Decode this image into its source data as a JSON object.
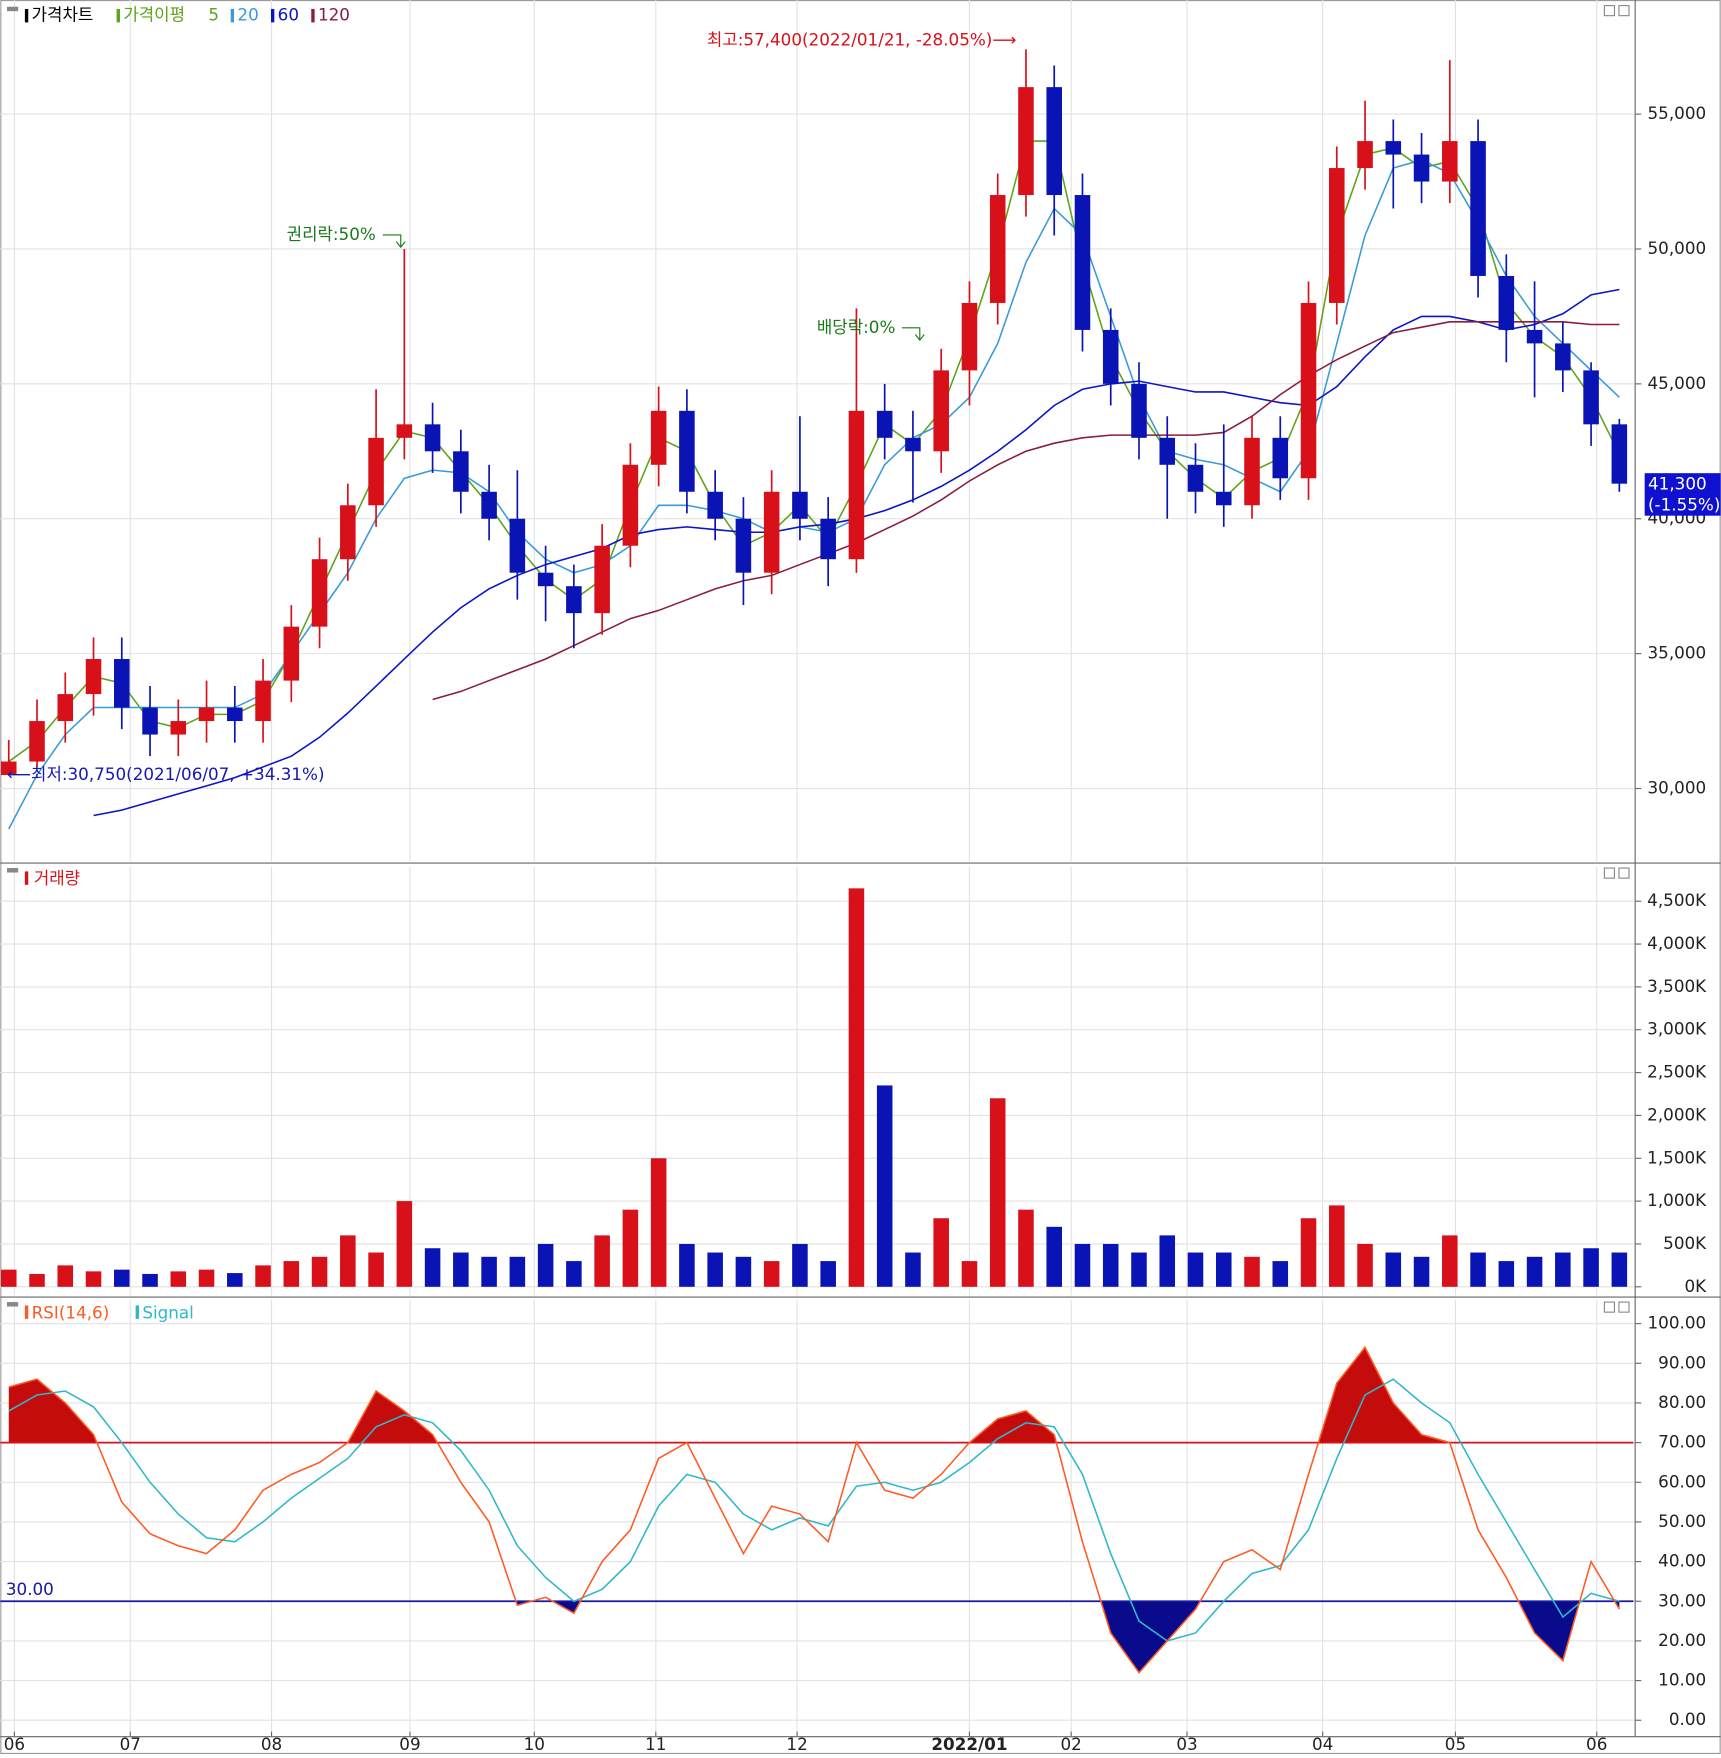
{
  "chart_data": [
    {
      "type": "candlestick",
      "title": "가격차트",
      "legend_title": "가격이평",
      "xlim": [
        -0.3,
        57.5
      ],
      "ylim": [
        27300,
        59230
      ],
      "yticks": [
        {
          "value": 30000,
          "label": "30,000"
        },
        {
          "value": 35000,
          "label": "35,000"
        },
        {
          "value": 40000,
          "label": "40,000"
        },
        {
          "value": 45000,
          "label": "45,000"
        },
        {
          "value": 50000,
          "label": "50,000"
        },
        {
          "value": 55000,
          "label": "55,000"
        }
      ],
      "grid": true,
      "up_color": "#d7101a",
      "down_color": "#0a14b4",
      "open": [
        30500,
        31000,
        32500,
        33500,
        34800,
        33000,
        32000,
        32500,
        33000,
        32500,
        34000,
        36000,
        38500,
        40500,
        43000,
        43500,
        42500,
        41000,
        40000,
        38000,
        37500,
        36500,
        39000,
        42000,
        44000,
        41000,
        40000,
        38000,
        41000,
        40000,
        38500,
        44000,
        43000,
        42500,
        45500,
        48000,
        52000,
        56000,
        52000,
        47000,
        45000,
        43000,
        42000,
        41000,
        40500,
        43000,
        41500,
        48000,
        53000,
        54000,
        53500,
        52500,
        54000,
        49000,
        47000,
        46500,
        45500,
        43500
      ],
      "high": [
        31800,
        33300,
        34300,
        35600,
        35600,
        33800,
        33300,
        34000,
        33800,
        34800,
        36800,
        39300,
        41300,
        44800,
        50000,
        44300,
        43300,
        42000,
        41800,
        39000,
        38300,
        39800,
        42800,
        44900,
        44800,
        41800,
        40800,
        41800,
        43800,
        40800,
        47800,
        45000,
        44000,
        46300,
        48800,
        52800,
        57400,
        56800,
        52800,
        47800,
        45800,
        43800,
        42800,
        43500,
        43800,
        43800,
        48800,
        53800,
        55500,
        54800,
        54300,
        57000,
        54800,
        49800,
        48800,
        47300,
        45800,
        43700
      ],
      "low": [
        30750,
        30800,
        31700,
        32700,
        32200,
        31200,
        31200,
        31700,
        31700,
        31700,
        33200,
        35200,
        37700,
        39700,
        42200,
        41700,
        40200,
        39200,
        37000,
        36200,
        35200,
        35700,
        38200,
        41200,
        40200,
        39200,
        36800,
        37200,
        39200,
        37500,
        38000,
        42200,
        40600,
        41700,
        44200,
        47200,
        51200,
        50500,
        46200,
        44200,
        42200,
        40000,
        40200,
        39700,
        40000,
        40700,
        40700,
        47200,
        52200,
        51500,
        51700,
        51700,
        48200,
        45800,
        44500,
        44700,
        42700,
        41000
      ],
      "close": [
        31000,
        32500,
        33500,
        34800,
        33000,
        32000,
        32500,
        33000,
        32500,
        34000,
        36000,
        38500,
        40500,
        43000,
        43500,
        42500,
        41000,
        40000,
        38000,
        37500,
        36500,
        39000,
        42000,
        44000,
        41000,
        40000,
        38000,
        41000,
        40000,
        38500,
        44000,
        43000,
        42500,
        45500,
        48000,
        52000,
        56000,
        52000,
        47000,
        45000,
        43000,
        42000,
        41000,
        40500,
        43000,
        41500,
        48000,
        53000,
        54000,
        53500,
        52500,
        54000,
        49000,
        47000,
        46500,
        45500,
        43500,
        41300
      ],
      "series": [
        {
          "name": "5",
          "color": "#5ea31a",
          "values": [
            31000,
            31750,
            33000,
            34150,
            33900,
            32500,
            32250,
            32750,
            32750,
            33250,
            35000,
            37250,
            39500,
            41750,
            43250,
            43000,
            41750,
            40500,
            39000,
            37750,
            37000,
            37750,
            40500,
            43000,
            42500,
            40500,
            39000,
            39500,
            40500,
            39250,
            41250,
            43500,
            42750,
            44000,
            46750,
            50000,
            54000,
            54000,
            49500,
            46000,
            44000,
            42500,
            41500,
            40750,
            41750,
            42250,
            44750,
            50500,
            53500,
            53750,
            53000,
            53250,
            51500,
            48000,
            46750,
            46000,
            44500,
            42400
          ]
        },
        {
          "name": "20",
          "color": "#3a9ad9",
          "values": [
            28500,
            30500,
            32000,
            33000,
            33000,
            33000,
            33000,
            33000,
            33000,
            33500,
            35000,
            36500,
            38000,
            40000,
            41500,
            41800,
            41700,
            41000,
            39500,
            38500,
            38000,
            38300,
            39000,
            40500,
            40500,
            40300,
            40000,
            39500,
            39700,
            39500,
            40000,
            42000,
            43000,
            43500,
            44500,
            46500,
            49500,
            51500,
            50500,
            47500,
            44500,
            42500,
            42200,
            42000,
            41500,
            41000,
            42500,
            46500,
            50500,
            53000,
            53300,
            52800,
            51000,
            49000,
            47500,
            46500,
            45500,
            44500
          ]
        },
        {
          "name": "60",
          "color": "#0a14c8",
          "values": [
            null,
            null,
            null,
            29000,
            29200,
            29500,
            29800,
            30100,
            30400,
            30800,
            31200,
            31900,
            32800,
            33800,
            34800,
            35800,
            36700,
            37400,
            37900,
            38300,
            38600,
            38900,
            39400,
            39600,
            39700,
            39600,
            39500,
            39500,
            39700,
            39800,
            40000,
            40300,
            40700,
            41200,
            41800,
            42500,
            43300,
            44200,
            44800,
            45000,
            45100,
            44900,
            44700,
            44700,
            44500,
            44300,
            44200,
            44900,
            46000,
            47000,
            47500,
            47500,
            47300,
            47000,
            47200,
            47600,
            48300,
            48500
          ]
        },
        {
          "name": "120",
          "color": "#8a1c3c",
          "values": [
            null,
            null,
            null,
            null,
            null,
            null,
            null,
            null,
            null,
            null,
            null,
            null,
            null,
            null,
            null,
            33300,
            33600,
            34000,
            34400,
            34800,
            35300,
            35800,
            36300,
            36600,
            37000,
            37400,
            37700,
            37900,
            38300,
            38700,
            39100,
            39600,
            40100,
            40700,
            41400,
            42000,
            42500,
            42800,
            43000,
            43100,
            43100,
            43100,
            43100,
            43200,
            43800,
            44600,
            45300,
            45900,
            46400,
            46900,
            47100,
            47300,
            47300,
            47300,
            47300,
            47300,
            47200,
            47200
          ]
        }
      ],
      "annotations": [
        "최고:57,400(2022/01/21, -28.05%)⟶",
        "권리락:50%",
        "배당락:0%",
        "⟵최저:30,750(2021/06/07, +34.31%)"
      ],
      "last_price_label": "41,300",
      "last_change_label": "(-1.55%)"
    },
    {
      "type": "bar",
      "title": "거래량",
      "xlim": [
        -0.3,
        57.5
      ],
      "ylim": [
        -100,
        4900
      ],
      "yticks": [
        {
          "value": 0,
          "label": "0K"
        },
        {
          "value": 500,
          "label": "500K"
        },
        {
          "value": 1000,
          "label": "1,000K"
        },
        {
          "value": 1500,
          "label": "1,500K"
        },
        {
          "value": 2000,
          "label": "2,000K"
        },
        {
          "value": 2500,
          "label": "2,500K"
        },
        {
          "value": 3000,
          "label": "3,000K"
        },
        {
          "value": 3500,
          "label": "3,500K"
        },
        {
          "value": 4000,
          "label": "4,000K"
        },
        {
          "value": 4500,
          "label": "4,500K"
        }
      ],
      "grid": true,
      "up_color": "#d7101a",
      "down_color": "#0a14b4",
      "values": [
        200,
        150,
        250,
        180,
        200,
        150,
        180,
        200,
        160,
        250,
        300,
        350,
        600,
        400,
        1000,
        450,
        400,
        350,
        350,
        500,
        300,
        600,
        900,
        1500,
        500,
        400,
        350,
        300,
        500,
        300,
        4650,
        2350,
        400,
        800,
        300,
        2200,
        900,
        700,
        500,
        500,
        400,
        600,
        400,
        400,
        350,
        300,
        800,
        950,
        500,
        400,
        350,
        600,
        400,
        300,
        350,
        400,
        450,
        400
      ]
    },
    {
      "type": "line",
      "xlim": [
        -0.3,
        57.5
      ],
      "ylim": [
        -4,
        106
      ],
      "yticks": [
        {
          "value": 0,
          "label": "0.00"
        },
        {
          "value": 10,
          "label": "10.00"
        },
        {
          "value": 20,
          "label": "20.00"
        },
        {
          "value": 30,
          "label": "30.00"
        },
        {
          "value": 40,
          "label": "40.00"
        },
        {
          "value": 50,
          "label": "50.00"
        },
        {
          "value": 60,
          "label": "60.00"
        },
        {
          "value": 70,
          "label": "70.00"
        },
        {
          "value": 80,
          "label": "80.00"
        },
        {
          "value": 90,
          "label": "90.00"
        },
        {
          "value": 100,
          "label": "100.00"
        }
      ],
      "xticks": [
        {
          "value": 0.2,
          "label": "06"
        },
        {
          "value": 4.3,
          "label": "07"
        },
        {
          "value": 9.3,
          "label": "08"
        },
        {
          "value": 14.2,
          "label": "09"
        },
        {
          "value": 18.6,
          "label": "10"
        },
        {
          "value": 22.9,
          "label": "11"
        },
        {
          "value": 27.9,
          "label": "12"
        },
        {
          "value": 34.0,
          "label": "2022/01"
        },
        {
          "value": 37.6,
          "label": "02"
        },
        {
          "value": 41.7,
          "label": "03"
        },
        {
          "value": 46.5,
          "label": "04"
        },
        {
          "value": 51.2,
          "label": "05"
        },
        {
          "value": 56.2,
          "label": "06"
        }
      ],
      "grid": true,
      "upper_level": 70,
      "lower_level": {
        "value": 30,
        "label": "30.00"
      },
      "upper_fill": "#c40c0c",
      "lower_fill": "#0a0a8c",
      "series": [
        {
          "name": "RSI(14,6)",
          "color": "#ff5a24",
          "values": [
            84,
            86,
            80,
            72,
            55,
            47,
            44,
            42,
            48,
            58,
            62,
            65,
            70,
            83,
            78,
            72,
            60,
            50,
            29,
            31,
            27,
            40,
            48,
            66,
            70,
            56,
            42,
            54,
            52,
            45,
            70,
            58,
            56,
            62,
            70,
            76,
            78,
            72,
            45,
            22,
            12,
            20,
            28,
            40,
            43,
            38,
            62,
            85,
            94,
            80,
            72,
            70,
            48,
            36,
            22,
            15,
            40,
            28
          ]
        },
        {
          "name": "Signal",
          "color": "#2fb8c8",
          "values": [
            78,
            82,
            83,
            79,
            70,
            60,
            52,
            46,
            45,
            50,
            56,
            61,
            66,
            74,
            77,
            75,
            68,
            58,
            44,
            36,
            30,
            33,
            40,
            54,
            62,
            60,
            52,
            48,
            51,
            49,
            59,
            60,
            58,
            60,
            65,
            71,
            75,
            74,
            62,
            42,
            25,
            20,
            22,
            30,
            37,
            39,
            48,
            66,
            82,
            86,
            80,
            75,
            62,
            50,
            38,
            26,
            32,
            30
          ]
        }
      ]
    }
  ]
}
